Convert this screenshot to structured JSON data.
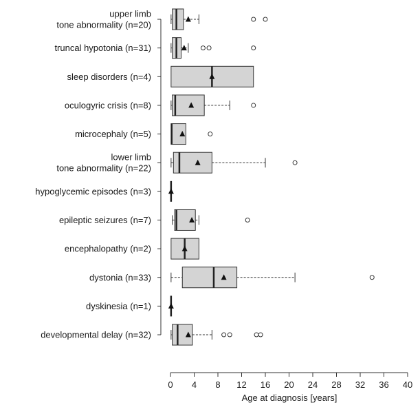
{
  "chart_data": {
    "type": "boxplot",
    "orientation": "horizontal",
    "xlabel": "Age at diagnosis [years]",
    "xlim": [
      0,
      40
    ],
    "xticks": [
      0,
      4,
      8,
      12,
      16,
      20,
      24,
      28,
      32,
      36,
      40
    ],
    "grid": false,
    "box_color": "#d4d4d4",
    "mean_marker": "triangle",
    "categories": [
      {
        "label": [
          "upper limb",
          "tone abnormality (n=20)"
        ],
        "min": 0.1,
        "q1": 0.3,
        "median": 1.0,
        "q3": 2.2,
        "max": 4.8,
        "mean": 3.0,
        "outliers": [
          14,
          16
        ]
      },
      {
        "label": [
          "truncal hypotonia (n=31)"
        ],
        "min": 0.1,
        "q1": 0.3,
        "median": 1.0,
        "q3": 1.8,
        "max": 3.0,
        "mean": 2.3,
        "outliers": [
          5.5,
          6.5,
          14
        ]
      },
      {
        "label": [
          "sleep disorders (n=4)"
        ],
        "min": 0.1,
        "q1": 0.1,
        "median": 7.0,
        "q3": 14.0,
        "max": 14.0,
        "mean": 7.0,
        "outliers": []
      },
      {
        "label": [
          "oculogyric crisis (n=8)"
        ],
        "min": 0.1,
        "q1": 0.3,
        "median": 0.8,
        "q3": 5.7,
        "max": 10.0,
        "mean": 3.5,
        "outliers": [
          14
        ]
      },
      {
        "label": [
          "microcephaly (n=5)"
        ],
        "min": 0.1,
        "q1": 0.1,
        "median": 0.2,
        "q3": 2.6,
        "max": 2.6,
        "mean": 2.0,
        "outliers": [
          6.7
        ]
      },
      {
        "label": [
          "lower limb",
          "tone abnormality (n=22)"
        ],
        "min": 0.1,
        "q1": 0.5,
        "median": 1.5,
        "q3": 7.0,
        "max": 16.0,
        "mean": 4.6,
        "outliers": [
          21
        ]
      },
      {
        "label": [
          "hypoglycemic episodes (n=3)"
        ],
        "min": 0.1,
        "q1": 0.1,
        "median": 0.1,
        "q3": 0.1,
        "max": 0.1,
        "mean": 0.1,
        "outliers": []
      },
      {
        "label": [
          "epileptic seizures (n=7)"
        ],
        "min": 0.3,
        "q1": 0.7,
        "median": 1.0,
        "q3": 4.2,
        "max": 4.8,
        "mean": 3.6,
        "outliers": [
          13
        ]
      },
      {
        "label": [
          "encephalopathy (n=2)"
        ],
        "min": 0.1,
        "q1": 0.1,
        "median": 2.4,
        "q3": 4.8,
        "max": 4.8,
        "mean": 2.4,
        "outliers": []
      },
      {
        "label": [
          "dystonia (n=33)"
        ],
        "min": 0.1,
        "q1": 2.0,
        "median": 7.3,
        "q3": 11.2,
        "max": 21.0,
        "mean": 9.0,
        "outliers": [
          34
        ]
      },
      {
        "label": [
          "dyskinesia (n=1)"
        ],
        "min": 0.1,
        "q1": 0.1,
        "median": 0.1,
        "q3": 0.1,
        "max": 0.1,
        "mean": 0.1,
        "outliers": []
      },
      {
        "label": [
          "developmental delay (n=32)"
        ],
        "min": 0.1,
        "q1": 0.3,
        "median": 1.2,
        "q3": 3.7,
        "max": 7.0,
        "mean": 3.0,
        "outliers": [
          9,
          10,
          14.5,
          15.2
        ]
      }
    ]
  }
}
